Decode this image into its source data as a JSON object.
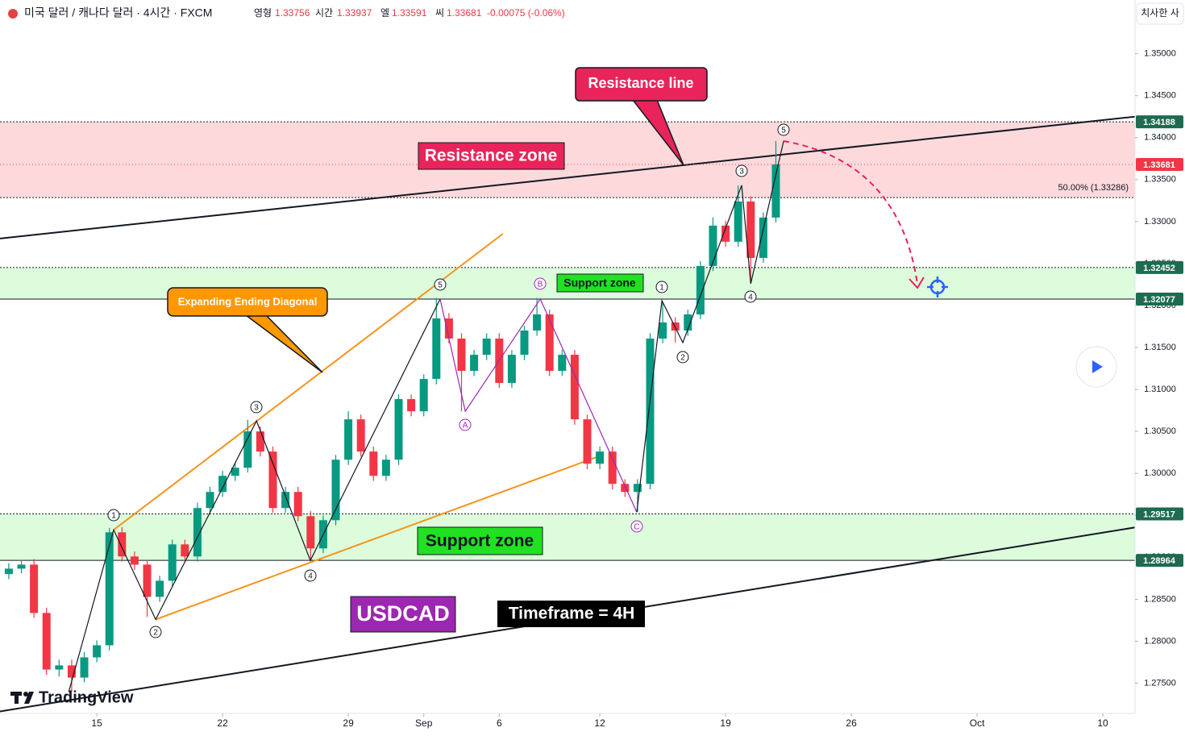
{
  "header": {
    "title": "미국 달러 / 캐나다 달러 · 4시간 · FXCM",
    "open_label": "영형",
    "open": 1.33756,
    "high_label": "시간",
    "high": 1.33937,
    "low_label": "엘",
    "low": 1.33591,
    "close_label": "씨",
    "change": "-0.00075 (-0.06%)",
    "button": "치사한 사"
  },
  "logo": "TradingView",
  "annotations": {
    "resistance_line": "Resistance line",
    "resistance_zone": "Resistance zone",
    "diagonal": "Expanding Ending Diagonal",
    "support_zone_upper": "Support zone",
    "support_zone_lower": "Support zone",
    "symbol": "USDCAD",
    "timeframe": "Timeframe = 4H"
  },
  "chart_data": {
    "type": "candlestick",
    "up_color": "#089981",
    "down_color": "#f23645",
    "x": [
      -3.5,
      -3,
      -2.5,
      -2,
      -1.5,
      -1,
      -0.5,
      0,
      0.5,
      1,
      1.5,
      2,
      2.5,
      3,
      3.5,
      4,
      4.5,
      5,
      5.5,
      6,
      6.5,
      7,
      7.5,
      8,
      8.5,
      9,
      9.5,
      10,
      10.5,
      11,
      11.5,
      12,
      12.5,
      13,
      13.5,
      14,
      14.5,
      15,
      15.5,
      16,
      16.5,
      17,
      17.5,
      18,
      18.5,
      19,
      19.5,
      20,
      20.5,
      21,
      21.5,
      22,
      22.5,
      23,
      23.5,
      24,
      24.5,
      25,
      25.5,
      26,
      26.5,
      27
    ],
    "open": [
      1.288,
      1.28865,
      1.28913,
      1.28337,
      1.27663,
      1.27712,
      1.27567,
      1.27808,
      1.27952,
      1.29298,
      1.2901,
      1.28913,
      1.28529,
      1.28721,
      1.29154,
      1.2901,
      1.29587,
      1.29779,
      1.29971,
      1.30067,
      1.305,
      1.3026,
      1.29587,
      1.29779,
      1.2949,
      1.29106,
      1.29442,
      1.30163,
      1.30644,
      1.3026,
      1.29971,
      1.30163,
      1.30885,
      1.3074,
      1.31125,
      1.31846,
      1.31606,
      1.31221,
      1.31413,
      1.31606,
      1.31077,
      1.31413,
      1.31702,
      1.31894,
      1.31221,
      1.31413,
      1.30644,
      1.30115,
      1.3026,
      1.29875,
      1.29779,
      1.29875,
      1.31606,
      1.31798,
      1.31702,
      1.31894,
      1.32471,
      1.32952,
      1.3276,
      1.3324,
      1.32567,
      1.33048
    ],
    "high": [
      1.2893,
      1.2897,
      1.2898,
      1.284,
      1.2778,
      1.2778,
      1.2787,
      1.2801,
      1.2935,
      1.2936,
      1.2907,
      1.2897,
      1.2878,
      1.2921,
      1.2921,
      1.2965,
      1.2984,
      1.3003,
      1.3013,
      1.3064,
      1.3056,
      1.3032,
      1.2984,
      1.2984,
      1.2955,
      1.295,
      1.3022,
      1.3074,
      1.307,
      1.3032,
      1.3022,
      1.3094,
      1.3094,
      1.3118,
      1.3209,
      1.3191,
      1.3167,
      1.3147,
      1.3167,
      1.3167,
      1.3147,
      1.3176,
      1.3209,
      1.3195,
      1.3147,
      1.3147,
      1.307,
      1.3032,
      1.3032,
      1.2993,
      1.2993,
      1.3167,
      1.3204,
      1.3186,
      1.3195,
      1.3253,
      1.3305,
      1.3301,
      1.3343,
      1.333,
      1.3311,
      1.3396
    ],
    "low": [
      1.2874,
      1.2881,
      1.2828,
      1.276,
      1.2758,
      1.274,
      1.2751,
      1.2775,
      1.2789,
      1.2895,
      1.2885,
      1.2829,
      1.2847,
      1.2866,
      1.2895,
      1.2895,
      1.2953,
      1.2972,
      1.2991,
      1.3001,
      1.302,
      1.2953,
      1.2953,
      1.2943,
      1.2898,
      1.2905,
      1.2938,
      1.301,
      1.302,
      1.2991,
      1.2991,
      1.301,
      1.3068,
      1.3068,
      1.3106,
      1.3155,
      1.3074,
      1.3116,
      1.3135,
      1.3102,
      1.3102,
      1.3135,
      1.3164,
      1.3116,
      1.3116,
      1.3058,
      1.3005,
      1.3005,
      1.2981,
      1.2972,
      1.2954,
      1.2981,
      1.3155,
      1.3156,
      1.3164,
      1.3184,
      1.3241,
      1.327,
      1.327,
      1.3228,
      1.3251,
      1.3299
    ],
    "close": [
      1.28865,
      1.28913,
      1.28337,
      1.27663,
      1.27712,
      1.27567,
      1.27808,
      1.27952,
      1.29298,
      1.2901,
      1.28913,
      1.28529,
      1.28721,
      1.29154,
      1.2901,
      1.29587,
      1.29779,
      1.29971,
      1.30067,
      1.305,
      1.3026,
      1.29587,
      1.29779,
      1.2949,
      1.29106,
      1.29442,
      1.30163,
      1.30644,
      1.3026,
      1.29971,
      1.30163,
      1.30885,
      1.3074,
      1.31125,
      1.31846,
      1.31606,
      1.31221,
      1.31413,
      1.31606,
      1.31077,
      1.31413,
      1.31702,
      1.31894,
      1.31221,
      1.31413,
      1.30644,
      1.30115,
      1.3026,
      1.29875,
      1.29779,
      1.29875,
      1.31606,
      1.31798,
      1.31702,
      1.31894,
      1.32471,
      1.32952,
      1.3276,
      1.3324,
      1.32567,
      1.33048,
      1.33681
    ],
    "xlim": [
      -3.85,
      41.28
    ],
    "ylim": [
      1.2714,
      1.3564
    ],
    "xticks": [
      {
        "value": 0,
        "label": "15"
      },
      {
        "value": 5,
        "label": "22"
      },
      {
        "value": 10,
        "label": "29"
      },
      {
        "value": 13,
        "label": "Sep"
      },
      {
        "value": 16,
        "label": "6"
      },
      {
        "value": 20,
        "label": "12"
      },
      {
        "value": 25,
        "label": "19"
      },
      {
        "value": 30,
        "label": "26"
      },
      {
        "value": 35,
        "label": "Oct"
      },
      {
        "value": 40,
        "label": "10"
      }
    ],
    "yticks": [
      {
        "value": 1.35,
        "label": "1.35000"
      },
      {
        "value": 1.345,
        "label": "1.34500"
      },
      {
        "value": 1.34,
        "label": "1.34000"
      },
      {
        "value": 1.335,
        "label": "1.33500"
      },
      {
        "value": 1.33,
        "label": "1.33000"
      },
      {
        "value": 1.325,
        "label": "1.32500"
      },
      {
        "value": 1.32,
        "label": "1.32000"
      },
      {
        "value": 1.315,
        "label": "1.31500"
      },
      {
        "value": 1.31,
        "label": "1.31000"
      },
      {
        "value": 1.305,
        "label": "1.30500"
      },
      {
        "value": 1.3,
        "label": "1.30000"
      },
      {
        "value": 1.295,
        "label": "1.29500"
      },
      {
        "value": 1.29,
        "label": "1.29000"
      },
      {
        "value": 1.285,
        "label": "1.28500"
      },
      {
        "value": 1.28,
        "label": "1.28000"
      },
      {
        "value": 1.275,
        "label": "1.27500"
      }
    ],
    "zones": [
      {
        "top": 1.34188,
        "bottom": 1.33286,
        "color": "#fdd9dc"
      },
      {
        "top": 1.32452,
        "bottom": 1.32077,
        "color": "#dcfcdc"
      },
      {
        "top": 1.29517,
        "bottom": 1.28964,
        "color": "#dcfcdc"
      }
    ],
    "tag_color": "#1e6b50",
    "fib_label": "50.00% (1.33286)",
    "trendlines": [
      {
        "x": [
          -3.85,
          41.28
        ],
        "y": [
          1.32798,
          1.3425
        ],
        "color": "#131722"
      },
      {
        "x": [
          -3.85,
          41.28
        ],
        "y": [
          1.27164,
          1.29356
        ],
        "color": "#131722"
      },
      {
        "x": [
          0.67,
          16.15
        ],
        "y": [
          1.29327,
          1.32856
        ],
        "color": "#f7931a"
      },
      {
        "x": [
          2.34,
          20.03
        ],
        "y": [
          1.2826,
          1.30212
        ],
        "color": "#f7931a"
      }
    ],
    "wave_paths": [
      {
        "x": [
          -1.12,
          0.67,
          2.34,
          6.35,
          8.49,
          13.65
        ],
        "y": [
          1.27394,
          1.29327,
          1.2826,
          1.30625,
          1.28962,
          1.32077
        ],
        "color": "#131722"
      },
      {
        "x": [
          13.65,
          14.65,
          17.63,
          21.47
        ],
        "y": [
          1.32077,
          1.3074,
          1.32077,
          1.29538
        ],
        "color": "#9c27b0"
      },
      {
        "x": [
          21.47,
          22.47,
          23.3,
          25.64,
          26,
          27.31
        ],
        "y": [
          1.29538,
          1.32058,
          1.31558,
          1.33433,
          1.3226,
          1.33962
        ],
        "color": "#131722"
      }
    ],
    "wave_labels": [
      {
        "label": "1",
        "color": "#131722"
      },
      {
        "label": "2",
        "color": "#131722"
      },
      {
        "label": "3",
        "color": "#131722"
      },
      {
        "label": "4",
        "color": "#131722"
      },
      {
        "label": "5",
        "color": "#131722"
      },
      {
        "label": "A",
        "color": "#9c27b0"
      },
      {
        "label": "B",
        "color": "#9c27b0"
      },
      {
        "label": "C",
        "color": "#9c27b0"
      },
      {
        "label": "1",
        "color": "#131722"
      },
      {
        "label": "2",
        "color": "#131722"
      },
      {
        "label": "3",
        "color": "#131722"
      },
      {
        "label": "4",
        "color": "#131722"
      },
      {
        "label": "5",
        "color": "#131722"
      }
    ]
  }
}
